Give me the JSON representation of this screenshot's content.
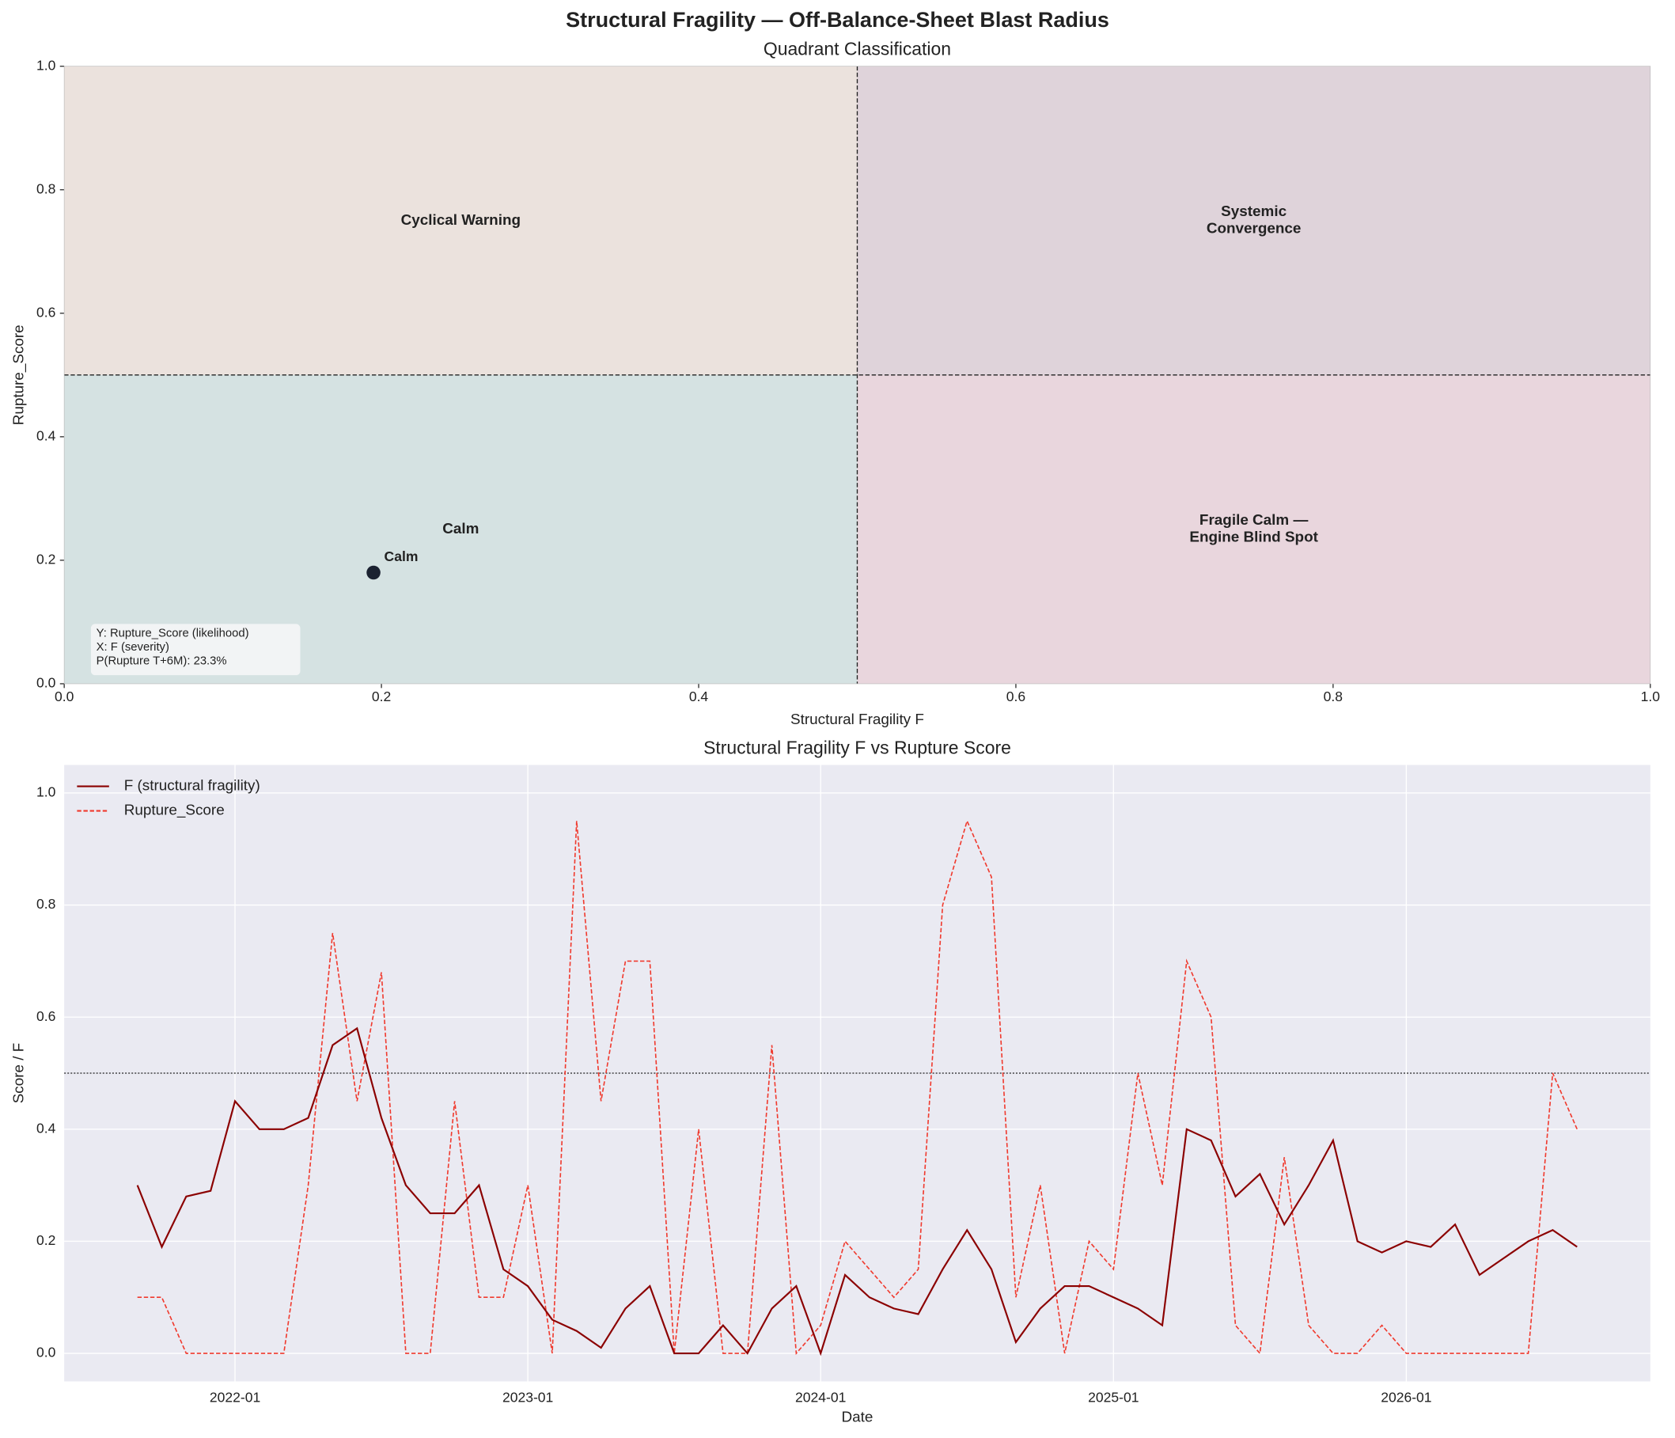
{
  "title": "Structural Fragility — Off-Balance-Sheet Blast Radius",
  "chart_data": [
    {
      "type": "quadrant",
      "title": "Quadrant Classification",
      "x_label": "Structural Fragility F",
      "y_label": "Rupture_Score",
      "xlim": [
        0,
        1
      ],
      "ylim": [
        0,
        1
      ],
      "xticks": [
        {
          "value": 0,
          "label": "0.0"
        },
        0.2,
        0.4,
        0.6,
        0.8,
        {
          "value": 1,
          "label": "1.0"
        }
      ],
      "yticks": [
        {
          "value": 0,
          "label": "0.0"
        },
        0.2,
        0.4,
        0.6,
        0.8,
        {
          "value": 1,
          "label": "1.0"
        }
      ],
      "x_threshold": 0.5,
      "y_threshold": 0.5,
      "quadrants": [
        {
          "label": [
            "Calm"
          ],
          "color": "#d5e2e2"
        },
        {
          "label": [
            "Cyclical Warning"
          ],
          "color": "#ebe2dd"
        },
        {
          "label": [
            "Systemic",
            "Convergence"
          ],
          "color": "#dfd3da"
        },
        {
          "label": [
            "Fragile Calm —",
            "Engine Blind Spot"
          ],
          "color": "#e9d6dd"
        }
      ],
      "points": [
        {
          "label": "Calm",
          "x": 0.195,
          "y": 0.18,
          "color": "#1b2231"
        }
      ],
      "note": [
        "Y: Rupture_Score (likelihood)",
        "X: F (severity)",
        "P(Rupture T+6M): 23.3%"
      ]
    },
    {
      "type": "line",
      "title": "Structural Fragility F vs Rupture Score",
      "x_label": "Date",
      "y_label": "Score / F",
      "xlim": [
        "2021-06",
        "2026-11"
      ],
      "xticks": [
        "2022-01",
        "2023-01",
        "2024-01",
        "2025-01",
        "2026-01"
      ],
      "ylim": [
        -0.05,
        1.05
      ],
      "yticks": [
        {
          "value": 0,
          "label": "0.0"
        },
        0.2,
        0.4,
        0.6,
        0.8,
        {
          "value": 1,
          "label": "1.0"
        }
      ],
      "threshold": 0.5,
      "grid": true,
      "legend": "upper left",
      "x": [
        "2021-09",
        "2021-10",
        "2021-11",
        "2021-12",
        "2022-01",
        "2022-02",
        "2022-03",
        "2022-04",
        "2022-05",
        "2022-06",
        "2022-07",
        "2022-08",
        "2022-09",
        "2022-10",
        "2022-11",
        "2022-12",
        "2023-01",
        "2023-02",
        "2023-03",
        "2023-04",
        "2023-05",
        "2023-06",
        "2023-07",
        "2023-08",
        "2023-09",
        "2023-10",
        "2023-11",
        "2023-12",
        "2024-01",
        "2024-02",
        "2024-03",
        "2024-04",
        "2024-05",
        "2024-06",
        "2024-07",
        "2024-08",
        "2024-09",
        "2024-10",
        "2024-11",
        "2024-12",
        "2025-01",
        "2025-02",
        "2025-03",
        "2025-04",
        "2025-05",
        "2025-06",
        "2025-07",
        "2025-08",
        "2025-09",
        "2025-10",
        "2025-11",
        "2025-12",
        "2026-01",
        "2026-02",
        "2026-03",
        "2026-04",
        "2026-05",
        "2026-06",
        "2026-07",
        "2026-08"
      ],
      "series": [
        {
          "name": "F (structural fragility)",
          "color": "#8b0000",
          "dash": false,
          "values": [
            0.3,
            0.19,
            0.28,
            0.29,
            0.45,
            0.4,
            0.4,
            0.42,
            0.55,
            0.58,
            0.42,
            0.3,
            0.25,
            0.25,
            0.3,
            0.15,
            0.12,
            0.06,
            0.04,
            0.01,
            0.08,
            0.12,
            0.0,
            0.0,
            0.05,
            0.0,
            0.08,
            0.12,
            0.0,
            0.14,
            0.1,
            0.08,
            0.07,
            0.15,
            0.22,
            0.15,
            0.02,
            0.08,
            0.12,
            0.12,
            0.1,
            0.08,
            0.05,
            0.4,
            0.38,
            0.28,
            0.32,
            0.23,
            0.3,
            0.38,
            0.2,
            0.18,
            0.2,
            0.19,
            0.23,
            0.14,
            0.17,
            0.2,
            0.22,
            0.19
          ]
        },
        {
          "name": "Rupture_Score",
          "color": "#f03a2e",
          "dash": true,
          "values": [
            0.1,
            0.1,
            0,
            0,
            0,
            0,
            0,
            0.3,
            0.75,
            0.45,
            0.68,
            0,
            0,
            0.45,
            0.1,
            0.1,
            0.3,
            0,
            0.95,
            0.45,
            0.7,
            0.7,
            0,
            0.4,
            0,
            0,
            0.55,
            0,
            0.05,
            0.2,
            0.15,
            0.1,
            0.15,
            0.8,
            0.95,
            0.85,
            0.1,
            0.3,
            0,
            0.2,
            0.15,
            0.5,
            0.3,
            0.7,
            0.6,
            0.05,
            0,
            0.35,
            0.05,
            0,
            0,
            0.05,
            0,
            0,
            0,
            0,
            0,
            0,
            0.5,
            0.4
          ]
        }
      ]
    }
  ]
}
